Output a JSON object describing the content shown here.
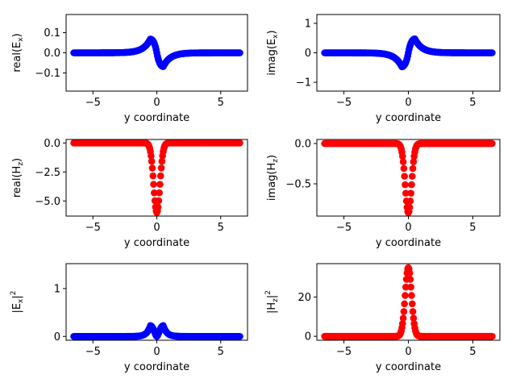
{
  "chart_data": [
    {
      "type": "scatter",
      "xlabel": "y coordinate",
      "ylabel": "real(E",
      "ylabel_sub": "x",
      "ylabel_tail": ")",
      "color": "#0000ff",
      "xlim": [
        -7.1,
        7.1
      ],
      "ylim": [
        -0.19,
        0.19
      ],
      "xticks": [
        -5,
        0,
        5
      ],
      "yticks": [
        -0.1,
        0.0,
        0.1
      ],
      "ytick_labels": [
        "−0.1",
        "0.0",
        "0.1"
      ],
      "xtick_labels": [
        "−5",
        "0",
        "5"
      ],
      "curve": "odd_real"
    },
    {
      "type": "scatter",
      "xlabel": "y coordinate",
      "ylabel": "imag(E",
      "ylabel_sub": "x",
      "ylabel_tail": ")",
      "color": "#0000ff",
      "xlim": [
        -7.1,
        7.1
      ],
      "ylim": [
        -1.3,
        1.3
      ],
      "xticks": [
        -5,
        0,
        5
      ],
      "yticks": [
        -1,
        0,
        1
      ],
      "ytick_labels": [
        "−1",
        "0",
        "1"
      ],
      "xtick_labels": [
        "−5",
        "0",
        "5"
      ],
      "curve": "odd_imag"
    },
    {
      "type": "scatter",
      "xlabel": "y coordinate",
      "ylabel": "real(H",
      "ylabel_sub": "z",
      "ylabel_tail": ")",
      "color": "#ff0000",
      "xlim": [
        -7.1,
        7.1
      ],
      "ylim": [
        -6.3,
        0.3
      ],
      "xticks": [
        -5,
        0,
        5
      ],
      "yticks": [
        -5.0,
        -2.5,
        0.0
      ],
      "ytick_labels": [
        "−5.0",
        "−2.5",
        "0.0"
      ],
      "xtick_labels": [
        "−5",
        "0",
        "5"
      ],
      "curve": "well_real"
    },
    {
      "type": "scatter",
      "xlabel": "y coordinate",
      "ylabel": "imag(H",
      "ylabel_sub": "z",
      "ylabel_tail": ")",
      "color": "#ff0000",
      "xlim": [
        -7.1,
        7.1
      ],
      "ylim": [
        -0.9,
        0.05
      ],
      "xticks": [
        -5,
        0,
        5
      ],
      "yticks": [
        -0.5,
        0.0
      ],
      "ytick_labels": [
        "−0.5",
        "0.0"
      ],
      "xtick_labels": [
        "−5",
        "0",
        "5"
      ],
      "curve": "well_imag"
    },
    {
      "type": "scatter",
      "xlabel": "y coordinate",
      "ylabel": "|E",
      "ylabel_sub": "x",
      "ylabel_tail": "|",
      "ylabel_sup": "2",
      "color": "#0000ff",
      "xlim": [
        -7.1,
        7.1
      ],
      "ylim": [
        -0.08,
        1.52
      ],
      "xticks": [
        -5,
        0,
        5
      ],
      "yticks": [
        0,
        1
      ],
      "ytick_labels": [
        "0",
        "1"
      ],
      "xtick_labels": [
        "−5",
        "0",
        "5"
      ],
      "curve": "double_peak"
    },
    {
      "type": "scatter",
      "xlabel": "y coordinate",
      "ylabel": "|H",
      "ylabel_sub": "z",
      "ylabel_tail": "|",
      "ylabel_sup": "2",
      "color": "#ff0000",
      "xlim": [
        -7.1,
        7.1
      ],
      "ylim": [
        -2,
        37
      ],
      "xticks": [
        -5,
        0,
        5
      ],
      "yticks": [
        0,
        20
      ],
      "ytick_labels": [
        "0",
        "20"
      ],
      "xtick_labels": [
        "−5",
        "0",
        "5"
      ],
      "curve": "single_peak"
    }
  ]
}
